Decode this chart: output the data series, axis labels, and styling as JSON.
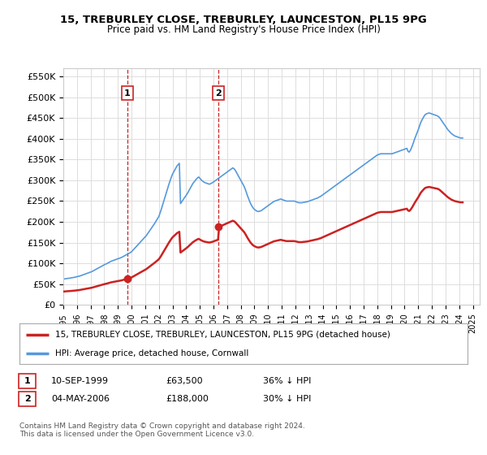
{
  "title": "15, TREBURLEY CLOSE, TREBURLEY, LAUNCESTON, PL15 9PG",
  "subtitle": "Price paid vs. HM Land Registry's House Price Index (HPI)",
  "background_color": "#ffffff",
  "plot_bg_color": "#ffffff",
  "grid_color": "#dddddd",
  "hpi_color": "#5599dd",
  "price_color": "#cc2222",
  "vline_color": "#cc2222",
  "ylabel_values": [
    0,
    50000,
    100000,
    150000,
    200000,
    250000,
    300000,
    350000,
    400000,
    450000,
    500000,
    550000
  ],
  "ylim": [
    0,
    570000
  ],
  "xlim_start": 1995.0,
  "xlim_end": 2025.5,
  "purchase1_year": 1999.7,
  "purchase1_price": 63500,
  "purchase1_label": "1",
  "purchase1_date": "10-SEP-1999",
  "purchase1_hpi_pct": "36% ↓ HPI",
  "purchase2_year": 2006.34,
  "purchase2_price": 188000,
  "purchase2_label": "2",
  "purchase2_date": "04-MAY-2006",
  "purchase2_hpi_pct": "30% ↓ HPI",
  "legend_label1": "15, TREBURLEY CLOSE, TREBURLEY, LAUNCESTON, PL15 9PG (detached house)",
  "legend_label2": "HPI: Average price, detached house, Cornwall",
  "footer": "Contains HM Land Registry data © Crown copyright and database right 2024.\nThis data is licensed under the Open Government Licence v3.0.",
  "purchase1_marker_price": 63500,
  "purchase2_marker_price": 188000
}
